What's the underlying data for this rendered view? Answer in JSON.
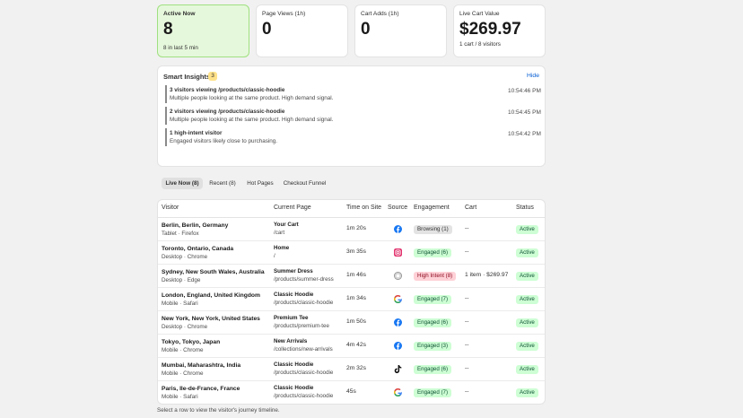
{
  "stats": [
    {
      "label": "Active Now",
      "value": "8",
      "sub": "8 in last 5 min"
    },
    {
      "label": "Page Views (1h)",
      "value": "0"
    },
    {
      "label": "Cart Adds (1h)",
      "value": "0"
    },
    {
      "label": "Live Cart Value",
      "value": "$269.97",
      "sub": "1 cart / 8 visitors"
    }
  ],
  "insights": {
    "title": "Smart Insights",
    "count": "3",
    "hide": "Hide",
    "items": [
      {
        "title": "3 visitors viewing /products/classic-hoodie",
        "desc": "Multiple people looking at the same product. High demand signal.",
        "time": "10:54:46 PM"
      },
      {
        "title": "2 visitors viewing /products/classic-hoodie",
        "desc": "Multiple people looking at the same product. High demand signal.",
        "time": "10:54:45 PM"
      },
      {
        "title": "1 high-intent visitor",
        "desc": "Engaged visitors likely close to purchasing.",
        "time": "10:54:42 PM"
      }
    ]
  },
  "tabs": [
    "Live Now (8)",
    "Recent (8)",
    "Hot Pages",
    "Checkout Funnel"
  ],
  "table": {
    "headers": [
      "Visitor",
      "Current Page",
      "Time on Site",
      "Source",
      "Engagement",
      "Cart",
      "Status"
    ],
    "rows": [
      {
        "location": "Berlin, Berlin, Germany",
        "device": "Tablet · Firefox",
        "page": "Your Cart",
        "path": "/cart",
        "time": "1m 20s",
        "engagement": "Browsing (1)",
        "cart": "--",
        "status": "Active"
      },
      {
        "location": "Toronto, Ontario, Canada",
        "device": "Desktop · Chrome",
        "page": "Home",
        "path": "/",
        "time": "3m 35s",
        "engagement": "Engaged (6)",
        "cart": "--",
        "status": "Active"
      },
      {
        "location": "Sydney, New South Wales, Australia",
        "device": "Desktop · Edge",
        "page": "Summer Dress",
        "path": "/products/summer-dress",
        "time": "1m 46s",
        "engagement": "High Intent (8)",
        "cart": "1 item · $269.97",
        "status": "Active"
      },
      {
        "location": "London, England, United Kingdom",
        "device": "Mobile · Safari",
        "page": "Classic Hoodie",
        "path": "/products/classic-hoodie",
        "time": "1m 34s",
        "engagement": "Engaged (7)",
        "cart": "--",
        "status": "Active"
      },
      {
        "location": "New York, New York, United States",
        "device": "Desktop · Chrome",
        "page": "Premium Tee",
        "path": "/products/premium-tee",
        "time": "1m 50s",
        "engagement": "Engaged (6)",
        "cart": "--",
        "status": "Active"
      },
      {
        "location": "Tokyo, Tokyo, Japan",
        "device": "Mobile · Chrome",
        "page": "New Arrivals",
        "path": "/collections/new-arrivals",
        "time": "4m 42s",
        "engagement": "Engaged (3)",
        "cart": "--",
        "status": "Active"
      },
      {
        "location": "Mumbai, Maharashtra, India",
        "device": "Mobile · Chrome",
        "page": "Classic Hoodie",
        "path": "/products/classic-hoodie",
        "time": "2m 32s",
        "engagement": "Engaged (6)",
        "cart": "--",
        "status": "Active"
      },
      {
        "location": "Paris, Ile-de-France, France",
        "device": "Mobile · Safari",
        "page": "Classic Hoodie",
        "path": "/products/classic-hoodie",
        "time": "45s",
        "engagement": "Engaged (7)",
        "cart": "--",
        "status": "Active"
      }
    ]
  },
  "footer": "Select a row to view the visitor's journey timeline."
}
